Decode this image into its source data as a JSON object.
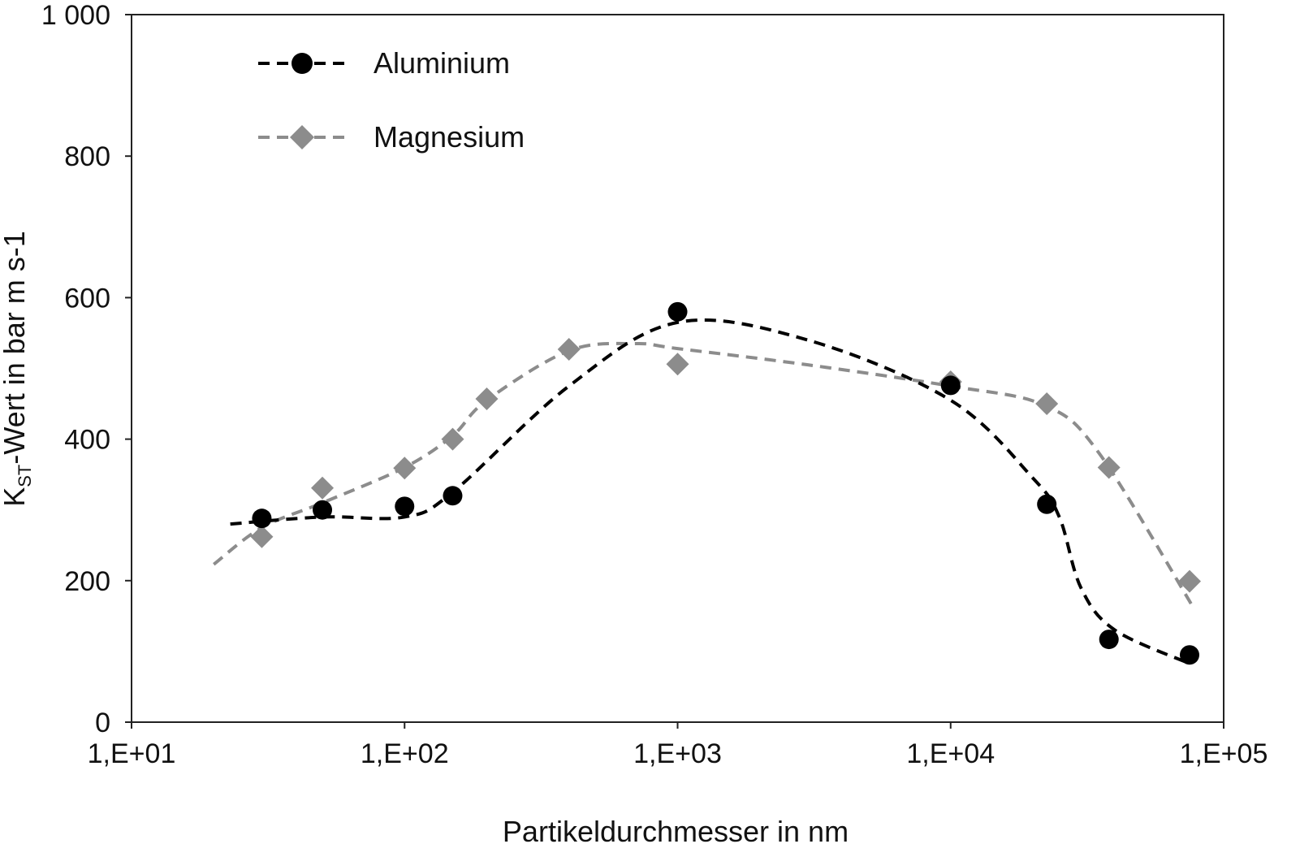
{
  "chart_data": {
    "type": "scatter",
    "title": "",
    "xlabel": "Partikeldurchmesser in nm",
    "ylabel": {
      "main": "K",
      "sub": "ST",
      "rest": "-Wert in bar m s-1"
    },
    "xscale": "log",
    "xlim": [
      10,
      100000
    ],
    "ylim": [
      0,
      1000
    ],
    "xticks": [
      10,
      100,
      1000,
      10000,
      100000
    ],
    "xtick_labels": [
      "1,E+01",
      "1,E+02",
      "1,E+03",
      "1,E+04",
      "1,E+05"
    ],
    "yticks": [
      0,
      200,
      400,
      600,
      800,
      1000
    ],
    "ytick_labels": [
      "0",
      "200",
      "400",
      "600",
      "800",
      "1 000"
    ],
    "grid": false,
    "legend_position": "top-left",
    "series": [
      {
        "name": "Aluminium",
        "color": "#000000",
        "marker": "circle",
        "x": [
          30,
          50,
          100,
          150,
          1000,
          10000,
          22500,
          38000,
          75000
        ],
        "y": [
          288,
          300,
          305,
          320,
          580,
          476,
          308,
          117,
          95
        ],
        "fit": {
          "x": [
            23,
            50,
            100,
            150,
            400,
            1000,
            3000,
            10000,
            20000,
            25000,
            30000,
            40000,
            76000
          ],
          "y": [
            280,
            290,
            290,
            325,
            475,
            565,
            540,
            455,
            345,
            290,
            190,
            130,
            82
          ]
        }
      },
      {
        "name": "Magnesium",
        "color": "#8c8c8c",
        "marker": "diamond",
        "x": [
          30,
          50,
          100,
          150,
          200,
          400,
          1000,
          10000,
          22500,
          38000,
          75000
        ],
        "y": [
          262,
          331,
          359,
          400,
          457,
          527,
          506,
          481,
          450,
          360,
          199
        ],
        "fit": {
          "x": [
            20,
            30,
            50,
            100,
            150,
            200,
            400,
            700,
            1000,
            3000,
            10000,
            22000,
            35000,
            78000
          ],
          "y": [
            223,
            275,
            310,
            360,
            405,
            455,
            525,
            535,
            528,
            505,
            475,
            448,
            380,
            160
          ]
        }
      }
    ]
  }
}
